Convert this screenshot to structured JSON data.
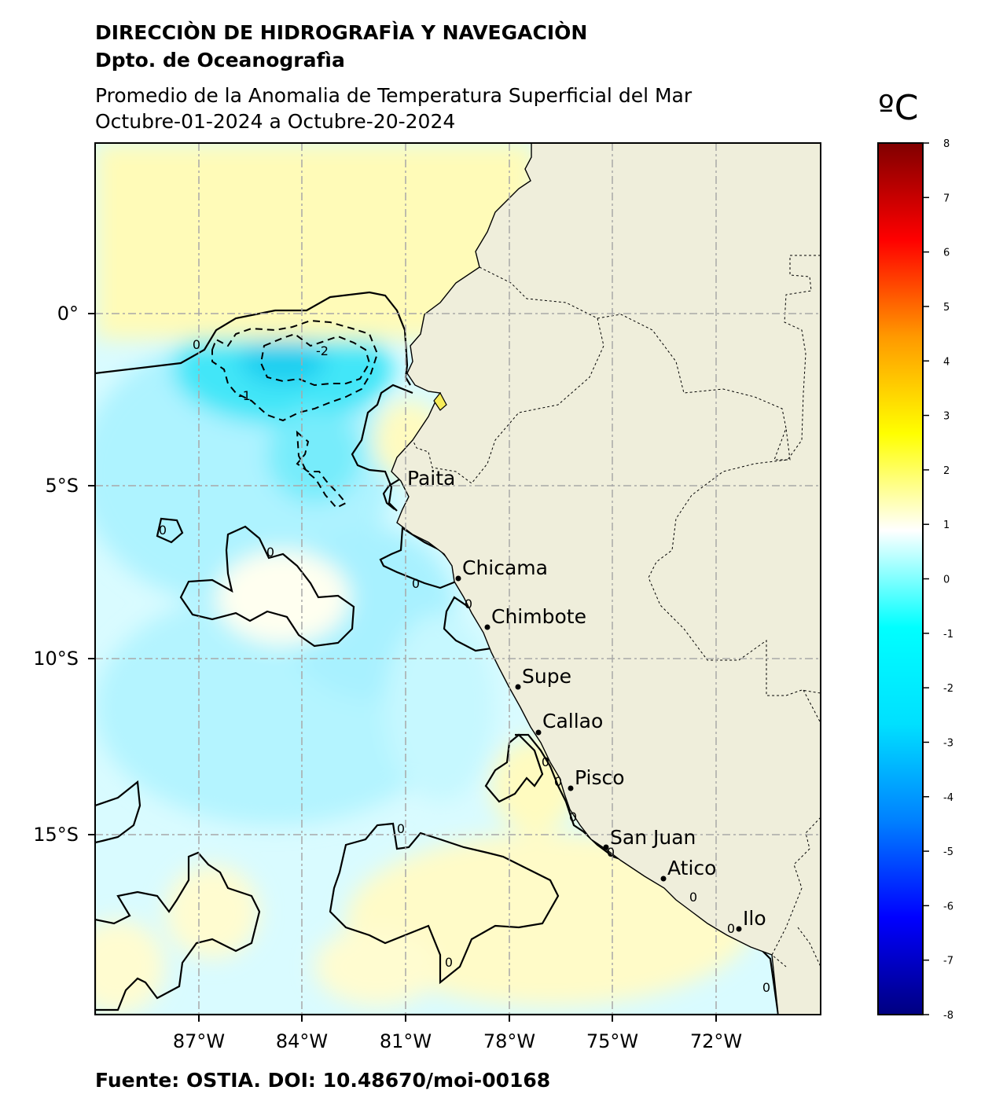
{
  "header": {
    "organization": "DIRECCIÒN DE HIDROGRAFÌA Y NAVEGACIÒN",
    "department": "Dpto. de Oceanografìa",
    "title": "Promedio de la Anomalia de Temperatura Superficial del Mar",
    "date_range": "Octubre-01-2024 a Octubre-20-2024"
  },
  "colorbar": {
    "unit": "ºC",
    "ticks": [
      "8",
      "7",
      "6",
      "5",
      "4",
      "3",
      "2",
      "1",
      "0",
      "-1",
      "-2",
      "-3",
      "-4",
      "-5",
      "-6",
      "-7",
      "-8"
    ],
    "colors": [
      "#000080",
      "#0000ff",
      "#0080ff",
      "#00e0ff",
      "#00ffff",
      "#ffffff",
      "#ffff00",
      "#ff9900",
      "#ff0000",
      "#800000"
    ]
  },
  "map": {
    "x_axis_labels": [
      "87°W",
      "84°W",
      "81°W",
      "78°W",
      "75°W",
      "72°W"
    ],
    "y_axis_labels": [
      "0°",
      "5°S",
      "10°S",
      "15°S"
    ],
    "contour_labels": [
      "0",
      "0",
      "0",
      "0",
      "0",
      "-1",
      "-2",
      "0",
      "0",
      "0",
      "0",
      "0",
      "0",
      "0",
      "0",
      "0"
    ],
    "cities": [
      {
        "name": "Paita"
      },
      {
        "name": "Chicama"
      },
      {
        "name": "Chimbote"
      },
      {
        "name": "Supe"
      },
      {
        "name": "Callao"
      },
      {
        "name": "Pisco"
      },
      {
        "name": "San Juan"
      },
      {
        "name": "Atico"
      },
      {
        "name": "Ilo"
      }
    ],
    "colors": {
      "land": "#efeedb",
      "warm_anomaly": "#fffbb0",
      "cold_anomaly": "#bdf6ff",
      "strong_cold": "#2fdff5"
    }
  },
  "footer": {
    "source": "Fuente: OSTIA. DOI: 10.48670/moi-00168"
  }
}
